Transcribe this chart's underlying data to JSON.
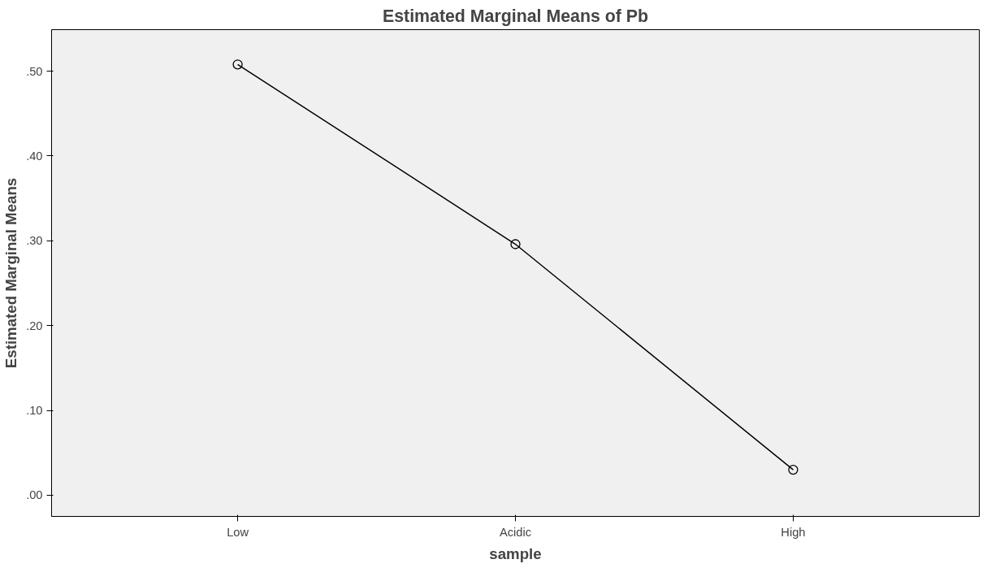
{
  "chart_data": {
    "type": "line",
    "title": "Estimated Marginal Means of Pb",
    "xlabel": "sample",
    "ylabel": "Estimated Marginal Means",
    "categories": [
      "Low",
      "Acidic",
      "High"
    ],
    "series": [
      {
        "color": "#000000",
        "values": [
          0.508,
          0.296,
          0.03
        ]
      }
    ],
    "ylim": [
      -0.025,
      0.549
    ],
    "yticks": [
      {
        "value": 0,
        "label": ".00"
      },
      {
        "value": 0.1,
        "label": ".10"
      },
      {
        "value": 0.2,
        "label": ".20"
      },
      {
        "value": 0.3,
        "label": ".30"
      },
      {
        "value": 0.4,
        "label": ".40"
      },
      {
        "value": 0.5,
        "label": ".50"
      }
    ],
    "grid": false,
    "marker": "circle",
    "line_style": "solid"
  }
}
